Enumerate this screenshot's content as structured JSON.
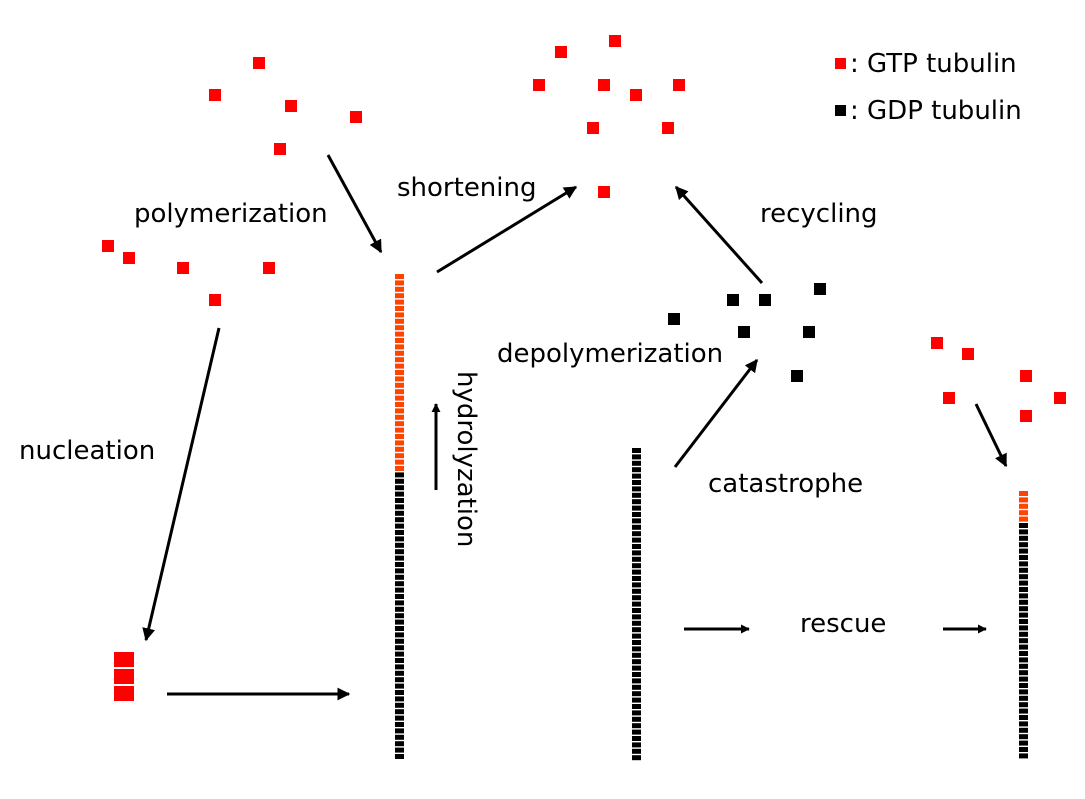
{
  "colors": {
    "gtp": "#ff0000",
    "gtp_lattice": "#ff4400",
    "gdp": "#000000",
    "arrow": "#000000",
    "background": "#ffffff"
  },
  "legend": {
    "gtp_label": ": GTP tubulin",
    "gdp_label": ": GDP tubulin"
  },
  "labels": {
    "polymerization": "polymerization",
    "shortening": "shortening",
    "recycling": "recycling",
    "depolymerization": "depolymerization",
    "hydrolyzation": "hydrolyzation",
    "nucleation": "nucleation",
    "catastrophe": "catastrophe",
    "rescue": "rescue"
  }
}
